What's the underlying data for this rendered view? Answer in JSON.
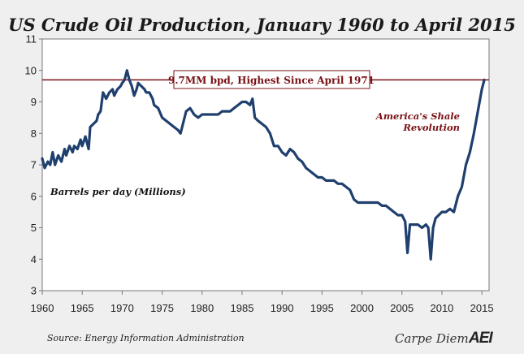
{
  "chart_data": {
    "type": "line",
    "title": "US Crude Oil Production, January 1960 to April 2015",
    "ylabel": "Barrels per day (Millions)",
    "xlim": [
      1960,
      2015.9
    ],
    "ylim": [
      3,
      11
    ],
    "x_ticks": [
      "1960",
      "1965",
      "1970",
      "1975",
      "1980",
      "1985",
      "1990",
      "1995",
      "2000",
      "2005",
      "2010",
      "2015"
    ],
    "y_ticks": [
      "3",
      "4",
      "5",
      "6",
      "7",
      "8",
      "9",
      "10",
      "11"
    ],
    "grid": false,
    "series": [
      {
        "color": "#1f3f6e",
        "points": [
          [
            1960.0,
            7.2
          ],
          [
            1960.3,
            6.9
          ],
          [
            1960.7,
            7.1
          ],
          [
            1961.0,
            7.0
          ],
          [
            1961.3,
            7.4
          ],
          [
            1961.6,
            7.0
          ],
          [
            1962.0,
            7.3
          ],
          [
            1962.4,
            7.1
          ],
          [
            1962.8,
            7.5
          ],
          [
            1963.0,
            7.3
          ],
          [
            1963.4,
            7.6
          ],
          [
            1963.8,
            7.4
          ],
          [
            1964.0,
            7.6
          ],
          [
            1964.4,
            7.5
          ],
          [
            1964.8,
            7.8
          ],
          [
            1965.0,
            7.6
          ],
          [
            1965.4,
            7.9
          ],
          [
            1965.8,
            7.5
          ],
          [
            1966.0,
            8.2
          ],
          [
            1966.4,
            8.3
          ],
          [
            1966.8,
            8.4
          ],
          [
            1967.0,
            8.6
          ],
          [
            1967.3,
            8.7
          ],
          [
            1967.6,
            9.3
          ],
          [
            1968.0,
            9.1
          ],
          [
            1968.4,
            9.3
          ],
          [
            1968.8,
            9.4
          ],
          [
            1969.0,
            9.2
          ],
          [
            1969.4,
            9.4
          ],
          [
            1969.8,
            9.5
          ],
          [
            1970.0,
            9.6
          ],
          [
            1970.3,
            9.7
          ],
          [
            1970.6,
            10.0
          ],
          [
            1970.9,
            9.7
          ],
          [
            1971.2,
            9.5
          ],
          [
            1971.5,
            9.2
          ],
          [
            1971.8,
            9.4
          ],
          [
            1972.0,
            9.6
          ],
          [
            1972.4,
            9.5
          ],
          [
            1972.8,
            9.4
          ],
          [
            1973.0,
            9.3
          ],
          [
            1973.4,
            9.3
          ],
          [
            1973.8,
            9.1
          ],
          [
            1974.0,
            8.9
          ],
          [
            1974.5,
            8.8
          ],
          [
            1975.0,
            8.5
          ],
          [
            1975.5,
            8.4
          ],
          [
            1976.0,
            8.3
          ],
          [
            1976.5,
            8.2
          ],
          [
            1977.0,
            8.1
          ],
          [
            1977.3,
            8.0
          ],
          [
            1977.6,
            8.3
          ],
          [
            1978.0,
            8.7
          ],
          [
            1978.5,
            8.8
          ],
          [
            1979.0,
            8.6
          ],
          [
            1979.5,
            8.5
          ],
          [
            1980.0,
            8.6
          ],
          [
            1980.5,
            8.6
          ],
          [
            1981.0,
            8.6
          ],
          [
            1981.5,
            8.6
          ],
          [
            1982.0,
            8.6
          ],
          [
            1982.5,
            8.7
          ],
          [
            1983.0,
            8.7
          ],
          [
            1983.5,
            8.7
          ],
          [
            1984.0,
            8.8
          ],
          [
            1984.5,
            8.9
          ],
          [
            1985.0,
            9.0
          ],
          [
            1985.5,
            9.0
          ],
          [
            1986.0,
            8.9
          ],
          [
            1986.3,
            9.1
          ],
          [
            1986.6,
            8.5
          ],
          [
            1987.0,
            8.4
          ],
          [
            1987.5,
            8.3
          ],
          [
            1988.0,
            8.2
          ],
          [
            1988.5,
            8.0
          ],
          [
            1989.0,
            7.6
          ],
          [
            1989.5,
            7.6
          ],
          [
            1990.0,
            7.4
          ],
          [
            1990.5,
            7.3
          ],
          [
            1991.0,
            7.5
          ],
          [
            1991.5,
            7.4
          ],
          [
            1992.0,
            7.2
          ],
          [
            1992.5,
            7.1
          ],
          [
            1993.0,
            6.9
          ],
          [
            1993.5,
            6.8
          ],
          [
            1994.0,
            6.7
          ],
          [
            1994.5,
            6.6
          ],
          [
            1995.0,
            6.6
          ],
          [
            1995.5,
            6.5
          ],
          [
            1996.0,
            6.5
          ],
          [
            1996.5,
            6.5
          ],
          [
            1997.0,
            6.4
          ],
          [
            1997.5,
            6.4
          ],
          [
            1998.0,
            6.3
          ],
          [
            1998.5,
            6.2
          ],
          [
            1999.0,
            5.9
          ],
          [
            1999.5,
            5.8
          ],
          [
            2000.0,
            5.8
          ],
          [
            2000.5,
            5.8
          ],
          [
            2001.0,
            5.8
          ],
          [
            2001.5,
            5.8
          ],
          [
            2002.0,
            5.8
          ],
          [
            2002.5,
            5.7
          ],
          [
            2003.0,
            5.7
          ],
          [
            2003.5,
            5.6
          ],
          [
            2004.0,
            5.5
          ],
          [
            2004.5,
            5.4
          ],
          [
            2005.0,
            5.4
          ],
          [
            2005.4,
            5.2
          ],
          [
            2005.7,
            4.2
          ],
          [
            2006.0,
            5.1
          ],
          [
            2006.4,
            5.1
          ],
          [
            2006.8,
            5.1
          ],
          [
            2007.0,
            5.1
          ],
          [
            2007.5,
            5.0
          ],
          [
            2008.0,
            5.1
          ],
          [
            2008.3,
            5.0
          ],
          [
            2008.6,
            4.0
          ],
          [
            2008.9,
            5.0
          ],
          [
            2009.2,
            5.3
          ],
          [
            2009.6,
            5.4
          ],
          [
            2010.0,
            5.5
          ],
          [
            2010.5,
            5.5
          ],
          [
            2011.0,
            5.6
          ],
          [
            2011.5,
            5.5
          ],
          [
            2012.0,
            6.0
          ],
          [
            2012.5,
            6.3
          ],
          [
            2013.0,
            7.0
          ],
          [
            2013.5,
            7.4
          ],
          [
            2014.0,
            8.0
          ],
          [
            2014.5,
            8.7
          ],
          [
            2015.0,
            9.4
          ],
          [
            2015.3,
            9.7
          ]
        ]
      }
    ],
    "reference_line": {
      "value": 9.7,
      "color": "#7a1014",
      "label": "9.7MM bpd, Highest Since April 1971"
    },
    "annotations": [
      {
        "text": "America's Shale",
        "color": "#7a1014"
      },
      {
        "text": "Revolution",
        "color": "#7a1014"
      }
    ]
  },
  "footer": {
    "source": "Source: Energy Information Administration",
    "brand": "Carpe Diem",
    "logo": "AEI"
  }
}
